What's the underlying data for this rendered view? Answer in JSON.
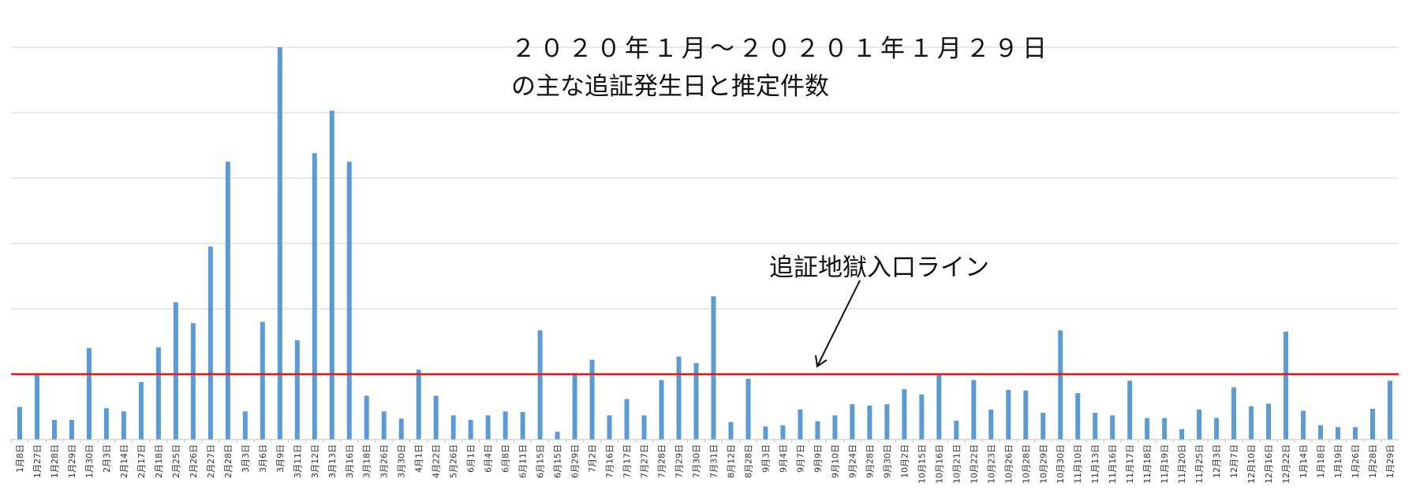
{
  "chart_data": {
    "type": "bar",
    "title_lines": [
      "２０２０年１月～２０２０１年１月２９日",
      "の主な追証発生日と推定件数"
    ],
    "annotation_label": "追証地獄入口ライン",
    "categories": [
      "1月8日",
      "1月27日",
      "1月28日",
      "1月29日",
      "1月30日",
      "2月3日",
      "2月14日",
      "2月17日",
      "2月18日",
      "2月25日",
      "2月26日",
      "2月27日",
      "2月28日",
      "3月3日",
      "3月6日",
      "3月9日",
      "3月11日",
      "3月12日",
      "3月13日",
      "3月16日",
      "3月18日",
      "3月26日",
      "3月30日",
      "4月1日",
      "4月22日",
      "5月26日",
      "6月1日",
      "6月4日",
      "6月8日",
      "6月11日",
      "6月15日",
      "6月15日",
      "6月29日",
      "7月2日",
      "7月16日",
      "7月17日",
      "7月27日",
      "7月28日",
      "7月29日",
      "7月30日",
      "7月31日",
      "8月12日",
      "8月28日",
      "9月3日",
      "9月4日",
      "9月7日",
      "9月9日",
      "9月10日",
      "9月24日",
      "9月28日",
      "9月30日",
      "10月2日",
      "10月15日",
      "10月16日",
      "10月21日",
      "10月22日",
      "10月23日",
      "10月26日",
      "10月28日",
      "10月29日",
      "10月30日",
      "11月10日",
      "11月13日",
      "11月16日",
      "11月17日",
      "11月18日",
      "11月19日",
      "11月20日",
      "11月25日",
      "12月3日",
      "12月7日",
      "12月10日",
      "12月16日",
      "12月22日",
      "1月14日",
      "1月18日",
      "1月19日",
      "1月26日",
      "1月28日",
      "1月29日"
    ],
    "values": [
      0.5,
      1.0,
      0.3,
      0.3,
      1.4,
      0.48,
      0.43,
      0.88,
      1.41,
      2.1,
      1.78,
      2.95,
      4.25,
      0.43,
      1.8,
      6.0,
      1.52,
      4.38,
      5.03,
      4.25,
      0.67,
      0.43,
      0.32,
      1.07,
      0.67,
      0.37,
      0.3,
      0.37,
      0.43,
      0.42,
      1.67,
      0.12,
      1.0,
      1.22,
      0.37,
      0.62,
      0.37,
      0.91,
      1.27,
      1.17,
      2.19,
      0.27,
      0.93,
      0.2,
      0.22,
      0.46,
      0.28,
      0.37,
      0.54,
      0.52,
      0.54,
      0.77,
      0.69,
      1.0,
      0.29,
      0.91,
      0.46,
      0.76,
      0.75,
      0.41,
      1.67,
      0.71,
      0.41,
      0.37,
      0.9,
      0.33,
      0.33,
      0.16,
      0.46,
      0.33,
      0.8,
      0.51,
      0.55,
      1.65,
      0.44,
      0.22,
      0.19,
      0.19,
      0.47,
      0.9
    ],
    "threshold": 1.0,
    "ylim": [
      0,
      6.2
    ],
    "grid": true,
    "y_ticks_visible": false,
    "bar_color": "#5b9bd5",
    "threshold_color": "#ee1111",
    "grid_color": "#d0d0d0",
    "axis_color": "#bfbfbf",
    "arrow_color": "#111111"
  }
}
